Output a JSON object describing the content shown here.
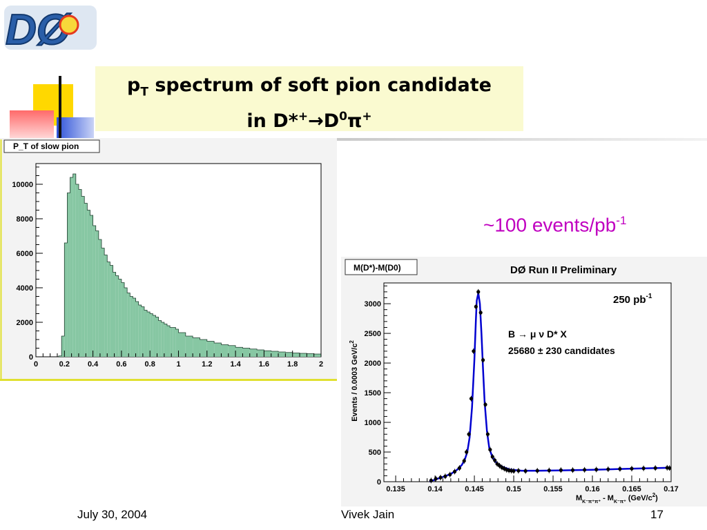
{
  "logo": {
    "text": "DØ"
  },
  "slide": {
    "title_line1_pre": "p",
    "title_line1_sub": "T",
    "title_line1_post": " spectrum of soft pion candidate",
    "title_line2_pre": "in D*",
    "title_line2_sup1": "+",
    "title_line2_arrow": "→",
    "title_line2_d": "D",
    "title_line2_sup2": "0",
    "title_line2_pi": "π",
    "title_line2_sup3": "+",
    "annotation_main": "~100 events/pb",
    "annotation_sup": "-1"
  },
  "footer": {
    "date": "July 30, 2004",
    "author": "Vivek Jain",
    "page": "17"
  },
  "colors": {
    "hist_fill": "#87c7a3",
    "fit_line": "#0000d0",
    "panel_bg": "#f3f3f3",
    "title_box": "#fafad0",
    "annotation": "#c000c0"
  },
  "chart_data": [
    {
      "type": "bar",
      "title": "P_T of slow pion",
      "x": [
        0.16,
        0.18,
        0.2,
        0.22,
        0.24,
        0.26,
        0.28,
        0.3,
        0.32,
        0.34,
        0.36,
        0.38,
        0.4,
        0.42,
        0.44,
        0.46,
        0.48,
        0.5,
        0.52,
        0.54,
        0.56,
        0.58,
        0.6,
        0.62,
        0.64,
        0.66,
        0.68,
        0.7,
        0.72,
        0.74,
        0.76,
        0.78,
        0.8,
        0.82,
        0.84,
        0.86,
        0.88,
        0.9,
        0.92,
        0.94,
        0.96,
        0.98,
        1.0,
        1.05,
        1.1,
        1.15,
        1.2,
        1.25,
        1.3,
        1.35,
        1.4,
        1.45,
        1.5,
        1.55,
        1.6,
        1.65,
        1.7,
        1.75,
        1.8,
        1.85,
        1.9,
        1.95
      ],
      "values": [
        50,
        1200,
        6600,
        9500,
        10400,
        10600,
        10000,
        9700,
        9300,
        8900,
        8500,
        8200,
        7600,
        7300,
        6800,
        6300,
        5900,
        5500,
        5300,
        4900,
        4700,
        4500,
        4300,
        4000,
        3700,
        3500,
        3400,
        3200,
        3000,
        2900,
        2700,
        2600,
        2500,
        2400,
        2300,
        2100,
        2000,
        1900,
        1800,
        1700,
        1700,
        1600,
        1400,
        1200,
        1100,
        1000,
        900,
        800,
        700,
        650,
        550,
        500,
        450,
        400,
        350,
        320,
        280,
        250,
        220,
        200,
        180,
        160
      ],
      "xlim": [
        0,
        2
      ],
      "ylim": [
        0,
        11200
      ],
      "xticks": [
        "0",
        "0.2",
        "0.4",
        "0.6",
        "0.8",
        "1",
        "1.2",
        "1.4",
        "1.6",
        "1.8",
        "2"
      ],
      "yticks": [
        "0",
        "2000",
        "4000",
        "6000",
        "8000",
        "10000"
      ]
    },
    {
      "type": "scatter",
      "title": "M(D*)-M(D0)",
      "header": "DØ Run II Preliminary",
      "lumi_main": "250 pb",
      "lumi_sup": "-1",
      "decay": "B → μ ν D* X",
      "candidates": "25680 ± 230 candidates",
      "ylabel": "Events / 0.0003 GeV/c",
      "ylabel_sup": "2",
      "xlabel": "M",
      "xlabel_sub1": "K⁻π⁺π⁺",
      "xlabel_mid": " - M",
      "xlabel_sub2": "K⁻π⁺",
      "xlabel_units": "  (GeV/c",
      "xlabel_units_sup": "2",
      "xlabel_close": ")",
      "x": [
        0.1395,
        0.1401,
        0.1407,
        0.1413,
        0.1419,
        0.1425,
        0.1431,
        0.1437,
        0.144,
        0.1443,
        0.1446,
        0.1449,
        0.1452,
        0.1455,
        0.1458,
        0.1461,
        0.1464,
        0.1467,
        0.147,
        0.1473,
        0.1476,
        0.1479,
        0.1482,
        0.1485,
        0.1488,
        0.1491,
        0.1494,
        0.1497,
        0.15,
        0.1506,
        0.1515,
        0.153,
        0.1545,
        0.156,
        0.1575,
        0.159,
        0.1605,
        0.162,
        0.1635,
        0.165,
        0.1665,
        0.168,
        0.1695,
        0.1698
      ],
      "y": [
        20,
        50,
        70,
        90,
        120,
        170,
        230,
        350,
        500,
        800,
        1400,
        2200,
        2950,
        3200,
        2850,
        2050,
        1300,
        800,
        540,
        420,
        360,
        300,
        270,
        240,
        220,
        200,
        190,
        185,
        180,
        185,
        180,
        185,
        190,
        195,
        195,
        200,
        205,
        210,
        215,
        220,
        225,
        230,
        235,
        230
      ],
      "fit_x": [
        0.1393,
        0.14,
        0.141,
        0.142,
        0.1428,
        0.1434,
        0.1438,
        0.1441,
        0.1444,
        0.1447,
        0.145,
        0.1452,
        0.1453,
        0.1455,
        0.1457,
        0.1459,
        0.1461,
        0.1463,
        0.1466,
        0.1469,
        0.1473,
        0.1478,
        0.1485,
        0.1495,
        0.151,
        0.153,
        0.156,
        0.16,
        0.165,
        0.17
      ],
      "fit_y": [
        0,
        35,
        80,
        130,
        200,
        280,
        380,
        500,
        750,
        1250,
        2050,
        2750,
        3050,
        3180,
        3000,
        2500,
        1900,
        1350,
        850,
        560,
        410,
        320,
        255,
        205,
        185,
        185,
        190,
        200,
        220,
        235
      ],
      "xlim": [
        0.1335,
        0.17
      ],
      "ylim": [
        0,
        3350
      ],
      "xticks": [
        0.135,
        0.14,
        0.145,
        0.15,
        0.155,
        0.16,
        0.165,
        0.17
      ],
      "xtick_labels": [
        "0.135",
        "0.14",
        "0.145",
        "0.15",
        "0.155",
        "0.16",
        "0.165",
        "0.17"
      ],
      "yticks": [
        0,
        500,
        1000,
        1500,
        2000,
        2500,
        3000
      ],
      "ytick_labels": [
        "0",
        "500",
        "1000",
        "1500",
        "2000",
        "2500",
        "3000"
      ]
    }
  ]
}
